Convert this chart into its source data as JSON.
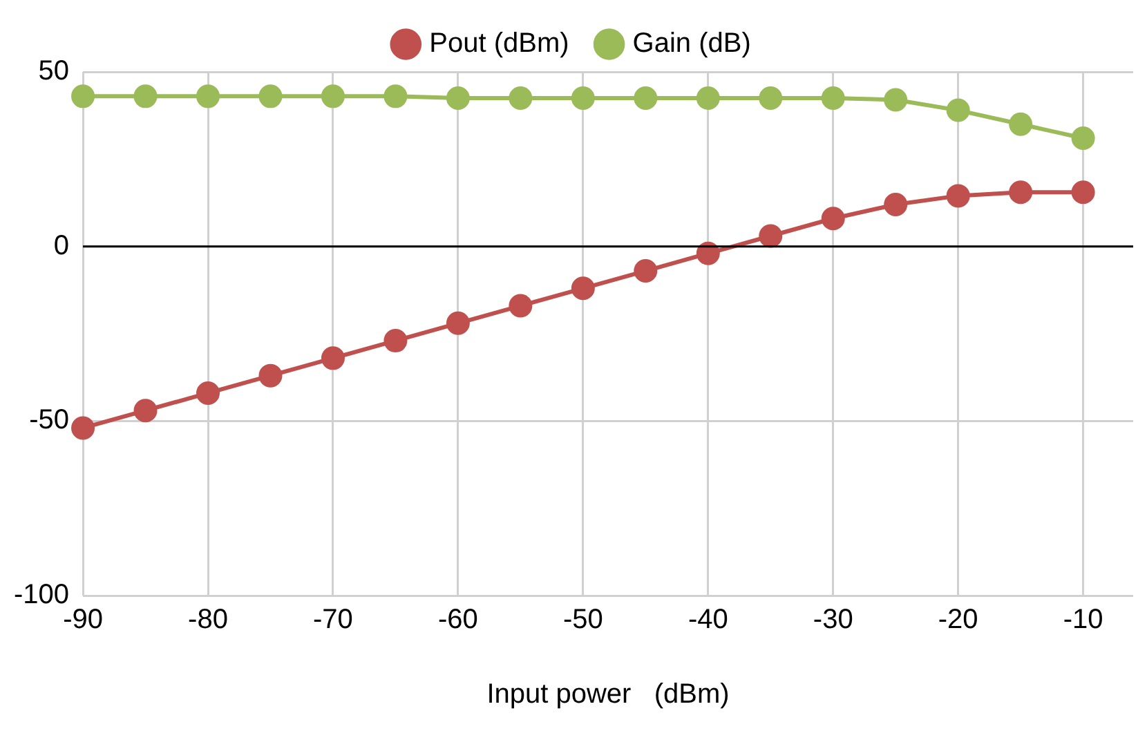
{
  "chart_data": {
    "type": "line",
    "xlabel": "Input power   (dBm)",
    "x": [
      -90,
      -85,
      -80,
      -75,
      -70,
      -65,
      -60,
      -55,
      -50,
      -45,
      -40,
      -35,
      -30,
      -25,
      -20,
      -15,
      -10
    ],
    "series": [
      {
        "name": "Pout (dBm)",
        "color": "#c0504d",
        "values": [
          -52,
          -47,
          -42,
          -37,
          -32,
          -27,
          -22,
          -17,
          -12,
          -7,
          -2,
          3,
          8,
          12,
          14.5,
          15.5,
          15.5
        ]
      },
      {
        "name": "Gain (dB)",
        "color": "#9bbb59",
        "values": [
          43,
          43,
          43,
          43,
          43,
          43,
          42.5,
          42.5,
          42.5,
          42.5,
          42.5,
          42.5,
          42.5,
          42,
          39,
          35,
          31
        ]
      }
    ],
    "xlim": [
      -90,
      -6
    ],
    "xticks": [
      -90,
      -80,
      -70,
      -60,
      -50,
      -40,
      -30,
      -20,
      -10
    ],
    "ylim": [
      -100,
      50
    ],
    "yticks": [
      -100,
      -50,
      0,
      50
    ],
    "ref_lines": [
      {
        "axis": "y",
        "value": 0,
        "color": "#000000"
      }
    ],
    "grid": true,
    "legend": "top",
    "marker": "circle",
    "line_style": "solid"
  }
}
